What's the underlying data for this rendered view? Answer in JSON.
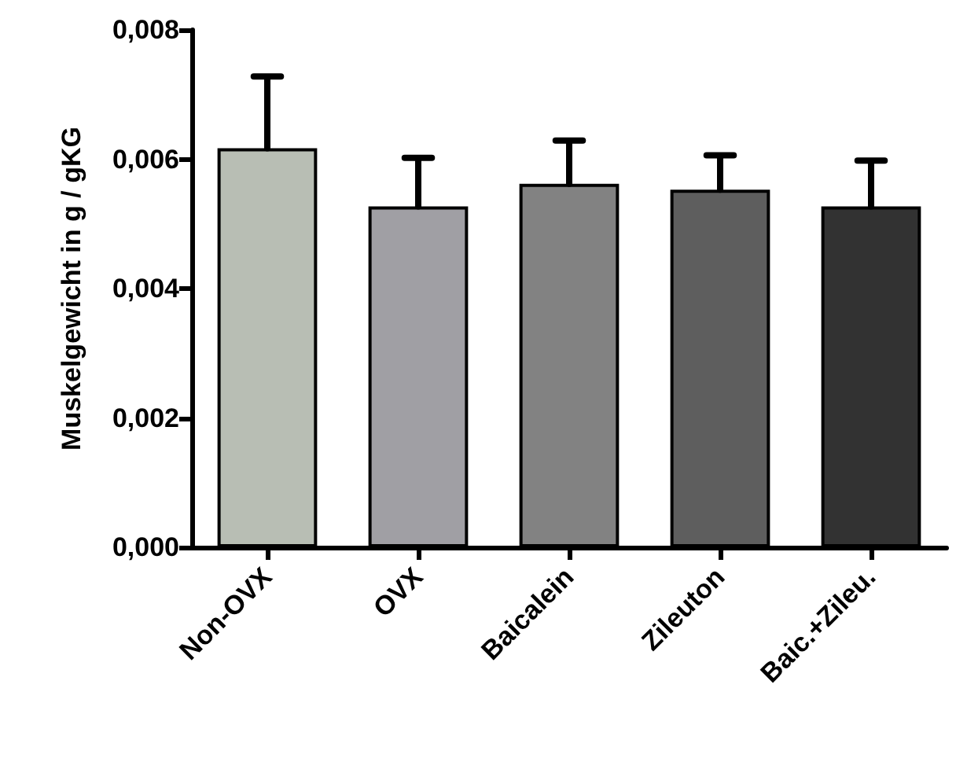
{
  "chart_data": {
    "type": "bar",
    "ylabel": "Muskelgewicht in g / gKG",
    "categories": [
      "Non-OVX",
      "OVX",
      "Baicalein",
      "Zileuton",
      "Baic.+Zileu."
    ],
    "values": [
      0.00617,
      0.00527,
      0.00562,
      0.00553,
      0.00527
    ],
    "errors": [
      [
        0.00617,
        0.00728
      ],
      [
        0.00527,
        0.00602
      ],
      [
        0.00562,
        0.00629
      ],
      [
        0.00553,
        0.00606
      ],
      [
        0.00527,
        0.00598
      ]
    ],
    "colors": [
      "#b8beb4",
      "#a09fa4",
      "#828282",
      "#5e5e5e",
      "#323232"
    ],
    "ylim": [
      0,
      0.008
    ],
    "yticks": [
      {
        "value": 0,
        "label": "0,000"
      },
      {
        "value": 0.002,
        "label": "0,002"
      },
      {
        "value": 0.004,
        "label": "0,004"
      },
      {
        "value": 0.006,
        "label": "0,006"
      },
      {
        "value": 0.008,
        "label": "0,008"
      }
    ],
    "grid": false
  }
}
